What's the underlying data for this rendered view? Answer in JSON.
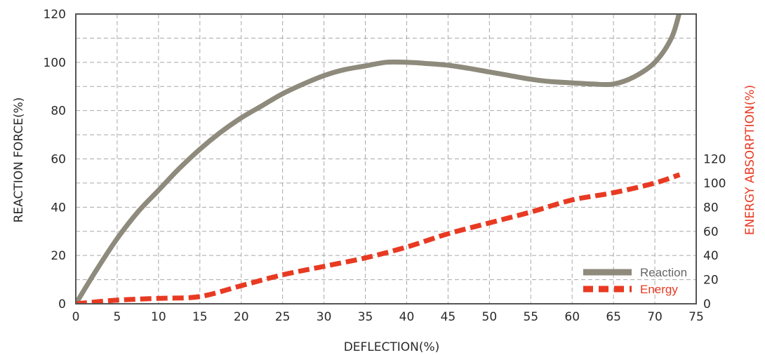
{
  "chart_data": {
    "type": "line",
    "xlabel": "DEFLECTION(%)",
    "ylabel": "REACTION FORCE(%)",
    "y2label": "ENERGY ABSORPTION(%)",
    "xlim": [
      0,
      75
    ],
    "ylim": [
      0,
      120
    ],
    "y2lim": [
      0,
      120
    ],
    "x_ticks": [
      0,
      5,
      10,
      15,
      20,
      25,
      30,
      35,
      40,
      45,
      50,
      55,
      60,
      65,
      70,
      75
    ],
    "y_ticks": [
      0,
      20,
      40,
      60,
      80,
      100,
      120
    ],
    "y2_ticks": [
      0,
      20,
      40,
      60,
      80,
      100,
      120
    ],
    "grid": true,
    "legend_position": "bottom-right",
    "colors": {
      "reaction": "#8e8a7c",
      "energy": "#e83a22",
      "grid": "#a8a8a8",
      "axis": "#555555",
      "energy_label": "#e83a22"
    },
    "series": [
      {
        "name": "Reaction",
        "axis": "left",
        "style": "solid",
        "x": [
          0,
          2.5,
          5,
          7.5,
          10,
          12.5,
          15,
          17.5,
          20,
          22.5,
          25,
          27.5,
          30,
          32.5,
          35,
          37.5,
          40,
          42.5,
          45,
          47.5,
          50,
          52.5,
          55,
          57.5,
          60,
          62.5,
          65,
          67.5,
          70,
          72,
          73
        ],
        "values": [
          0,
          14,
          27,
          38,
          47,
          56,
          64,
          71,
          77,
          82,
          87,
          91,
          94.5,
          97,
          98.5,
          100,
          100,
          99.5,
          98.8,
          97.5,
          96,
          94.5,
          93,
          92,
          91.5,
          91,
          91,
          94,
          100,
          110,
          121
        ]
      },
      {
        "name": "Energy",
        "axis": "right",
        "style": "dashed",
        "x": [
          0,
          5,
          10,
          15,
          20,
          25,
          30,
          35,
          40,
          45,
          50,
          55,
          60,
          65,
          70,
          73
        ],
        "values": [
          0,
          3,
          4.5,
          6,
          15,
          24,
          31,
          38,
          47,
          58,
          67,
          76,
          86,
          92,
          100,
          107
        ]
      }
    ]
  }
}
